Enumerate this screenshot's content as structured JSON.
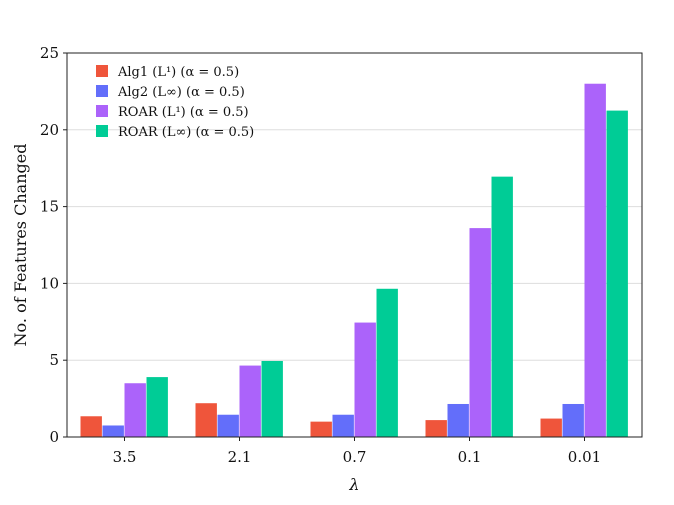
{
  "chart_data": {
    "type": "bar",
    "categories": [
      "3.5",
      "2.1",
      "0.7",
      "0.1",
      "0.01"
    ],
    "series": [
      {
        "name": "Alg1 (L¹) (α = 0.5)",
        "color": "#ef553b",
        "values": [
          1.35,
          2.2,
          1.0,
          1.1,
          1.2
        ]
      },
      {
        "name": "Alg2 (L∞) (α = 0.5)",
        "color": "#636efa",
        "values": [
          0.75,
          1.45,
          1.45,
          2.15,
          2.15
        ]
      },
      {
        "name": "ROAR (L¹) (α = 0.5)",
        "color": "#ab63fa",
        "values": [
          3.5,
          4.65,
          7.45,
          13.6,
          23.0
        ]
      },
      {
        "name": "ROAR (L∞) (α = 0.5)",
        "color": "#00cc96",
        "values": [
          3.9,
          4.95,
          9.65,
          16.95,
          21.25
        ]
      }
    ],
    "xlabel": "λ",
    "ylabel": "No. of Features Changed",
    "ylim": [
      0,
      25
    ],
    "yticks": [
      0,
      5,
      10,
      15,
      20,
      25
    ],
    "grid": "horizontal",
    "legend_position": "top-left"
  }
}
